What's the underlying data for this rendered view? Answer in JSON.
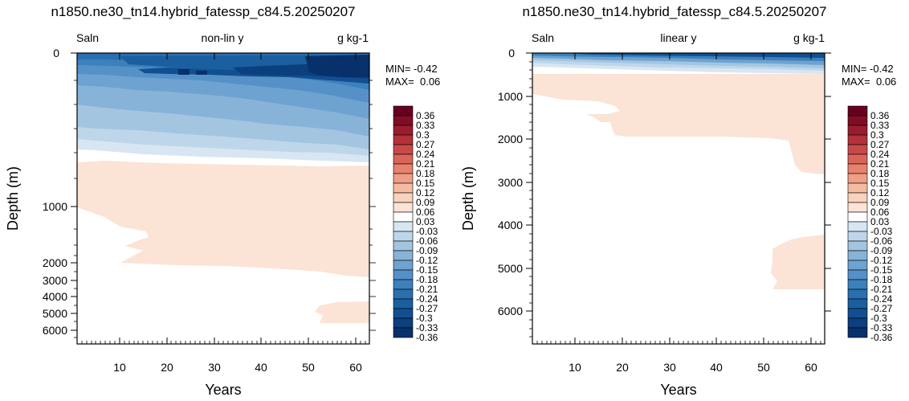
{
  "colors": {
    "levels": [
      -0.36,
      -0.33,
      -0.3,
      -0.27,
      -0.24,
      -0.21,
      -0.18,
      -0.15,
      -0.12,
      -0.09,
      -0.06,
      -0.03,
      0.03,
      0.06,
      0.09,
      0.12,
      0.15,
      0.18,
      0.21,
      0.24,
      0.27,
      0.3,
      0.33,
      0.36
    ],
    "fills": [
      "#08306b",
      "#0b3f7d",
      "#114f90",
      "#1a5fa0",
      "#2a6fb0",
      "#3c80bc",
      "#5591c7",
      "#6ea2d0",
      "#88b3d8",
      "#a3c5e0",
      "#bed6ea",
      "#d7e6f2",
      "#ffffff",
      "#fbe3d6",
      "#f9d2bd",
      "#f5bba2",
      "#ef9f85",
      "#e6826d",
      "#d9655a",
      "#c84a48",
      "#b4313a",
      "#9c1c2f",
      "#800d24",
      "#67001f"
    ]
  },
  "chart_data": [
    {
      "type": "heatmap",
      "title": "n1850.ne30_tn14.hybrid_fatessp_c84.5.20250207",
      "left_label": "Saln",
      "center_label": "non-lin y",
      "right_label": "g kg-1",
      "xlabel": "Years",
      "ylabel": "Depth (m)",
      "xlim": [
        1,
        63
      ],
      "ylim": [
        6500,
        0
      ],
      "y_scale": "non-linear (stretched upper ocean)",
      "x_ticks": [
        "10",
        "20",
        "30",
        "40",
        "50",
        "60"
      ],
      "y_ticks": [
        "0",
        "1000",
        "2000",
        "3000",
        "4000",
        "5000",
        "6000"
      ],
      "stats": [
        "MIN= -0.42",
        "MAX=  0.06"
      ],
      "colorbar_labels": [
        "0.36",
        "0.33",
        "0.3",
        "0.27",
        "0.24",
        "0.21",
        "0.18",
        "0.15",
        "0.12",
        "0.09",
        "0.06",
        "0.03",
        "-0.03",
        "-0.06",
        "-0.09",
        "-0.12",
        "-0.15",
        "-0.18",
        "-0.21",
        "-0.24",
        "-0.27",
        "-0.3",
        "-0.33",
        "-0.36"
      ]
    },
    {
      "type": "heatmap",
      "title": "n1850.ne30_tn14.hybrid_fatessp_c84.5.20250207",
      "left_label": "Saln",
      "center_label": "linear y",
      "right_label": "g kg-1",
      "xlabel": "Years",
      "ylabel": "Depth (m)",
      "xlim": [
        1,
        63
      ],
      "ylim": [
        6800,
        0
      ],
      "y_scale": "linear",
      "x_ticks": [
        "10",
        "20",
        "30",
        "40",
        "50",
        "60"
      ],
      "y_ticks": [
        "0",
        "1000",
        "2000",
        "3000",
        "4000",
        "5000",
        "6000"
      ],
      "stats": [
        "MIN= -0.42",
        "MAX=  0.06"
      ],
      "colorbar_labels": [
        "0.36",
        "0.33",
        "0.3",
        "0.27",
        "0.24",
        "0.21",
        "0.18",
        "0.15",
        "0.12",
        "0.09",
        "0.06",
        "0.03",
        "-0.03",
        "-0.06",
        "-0.09",
        "-0.12",
        "-0.15",
        "-0.18",
        "-0.21",
        "-0.24",
        "-0.27",
        "-0.3",
        "-0.33",
        "-0.36"
      ]
    }
  ]
}
